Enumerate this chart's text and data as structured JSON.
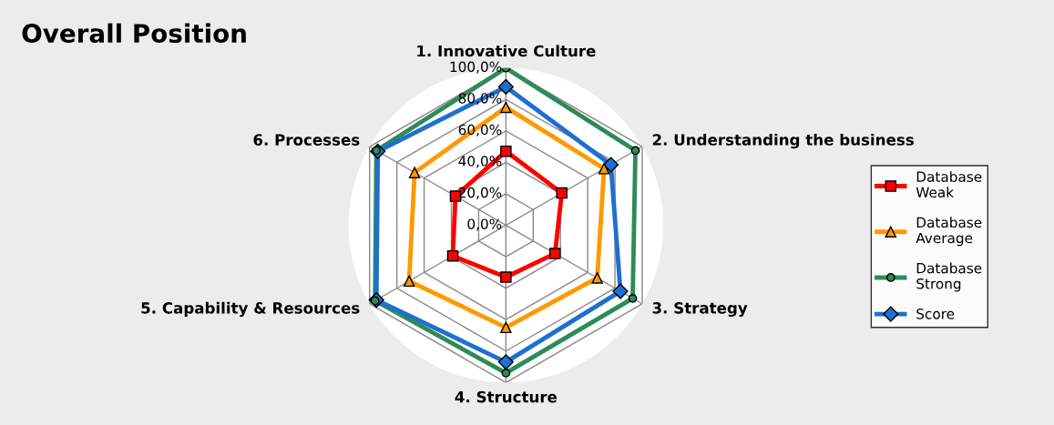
{
  "chart_data": {
    "type": "radar",
    "title": "Overall Position",
    "categories": [
      "1. Innovative Culture",
      "2. Understanding the business",
      "3. Strategy",
      "4. Structure",
      "5. Capability & Resources",
      "6. Processes"
    ],
    "ylim": [
      0,
      100
    ],
    "yticks": [
      {
        "value": 0,
        "label": "0,0%"
      },
      {
        "value": 20,
        "label": "20,0%"
      },
      {
        "value": 40,
        "label": "40,0%"
      },
      {
        "value": 60,
        "label": "60,0%"
      },
      {
        "value": 80,
        "label": "80,0%"
      },
      {
        "value": 100,
        "label": "100,0%"
      }
    ],
    "grid": true,
    "legend": "right",
    "line_style": "solid",
    "series": [
      {
        "name": "Database\nWeak",
        "color": "#ff0000",
        "marker": "square",
        "values": [
          47,
          41,
          36,
          33,
          39,
          37
        ]
      },
      {
        "name": "Database\nAverage",
        "color": "#ff9900",
        "marker": "triangle",
        "values": [
          75,
          72,
          67,
          65,
          71,
          67
        ]
      },
      {
        "name": "Database\nStrong",
        "color": "#2e8b57",
        "marker": "circle",
        "values": [
          100,
          95,
          93,
          94,
          96,
          95
        ]
      },
      {
        "name": "Score",
        "color": "#1f6fd0",
        "marker": "diamond",
        "values": [
          88,
          77,
          84,
          87,
          95,
          94
        ]
      }
    ]
  }
}
